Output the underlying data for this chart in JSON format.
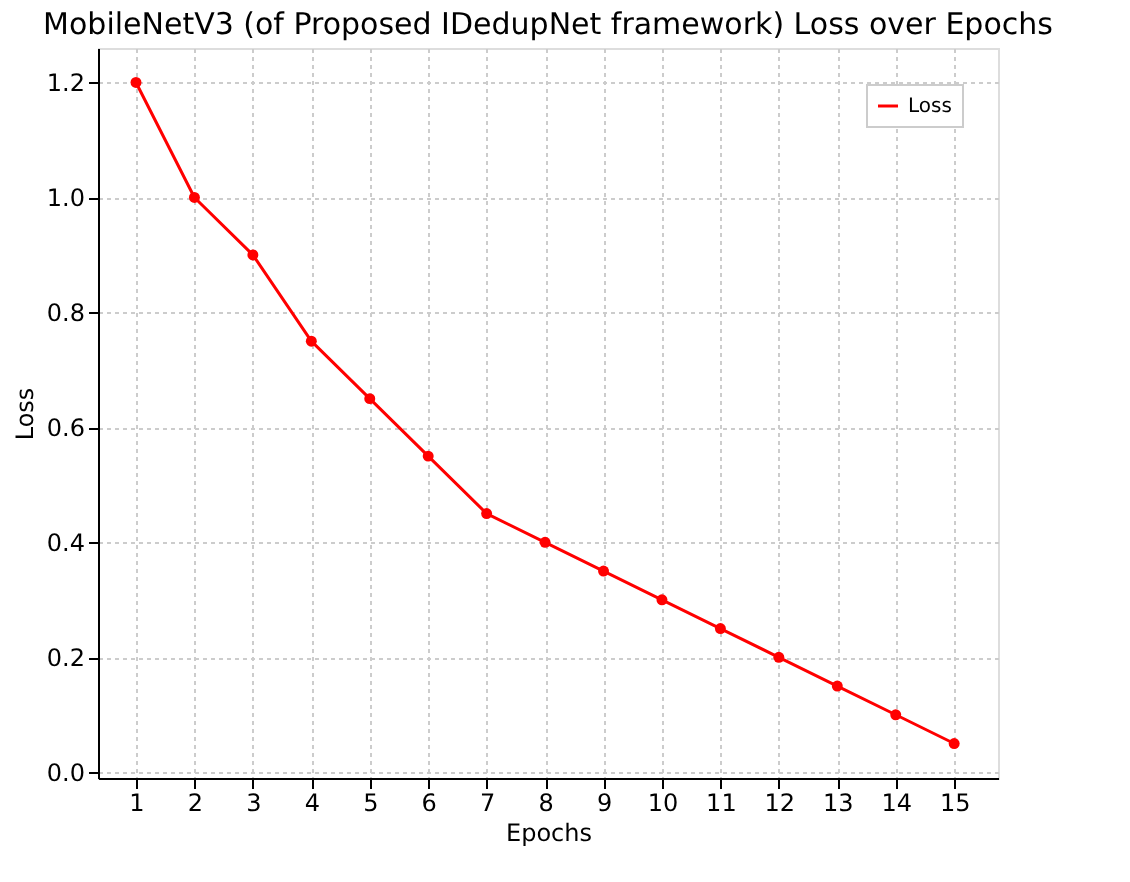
{
  "chart_data": {
    "type": "line",
    "title": "MobileNetV3 (of Proposed IDedupNet framework) Loss over Epochs",
    "xlabel": "Epochs",
    "ylabel": "Loss",
    "x": [
      1,
      2,
      3,
      4,
      5,
      6,
      7,
      8,
      9,
      10,
      11,
      12,
      13,
      14,
      15
    ],
    "series": [
      {
        "name": "Loss",
        "color": "#ff0000",
        "values": [
          1.2,
          1.0,
          0.9,
          0.75,
          0.65,
          0.55,
          0.45,
          0.4,
          0.35,
          0.3,
          0.25,
          0.2,
          0.15,
          0.1,
          0.05
        ]
      }
    ],
    "xlim": [
      0.35,
      15.75
    ],
    "xticks": [
      1,
      2,
      3,
      4,
      5,
      6,
      7,
      8,
      9,
      10,
      11,
      12,
      13,
      14,
      15
    ],
    "ylim": [
      -0.01,
      1.26
    ],
    "yticks": [
      {
        "value": 0,
        "label": "0.0"
      },
      0.2,
      0.4,
      0.6,
      0.8,
      {
        "value": 1,
        "label": "1.0"
      },
      1.2
    ],
    "grid": true,
    "legend": "top right",
    "marker": "circle",
    "line_style": "solid"
  }
}
